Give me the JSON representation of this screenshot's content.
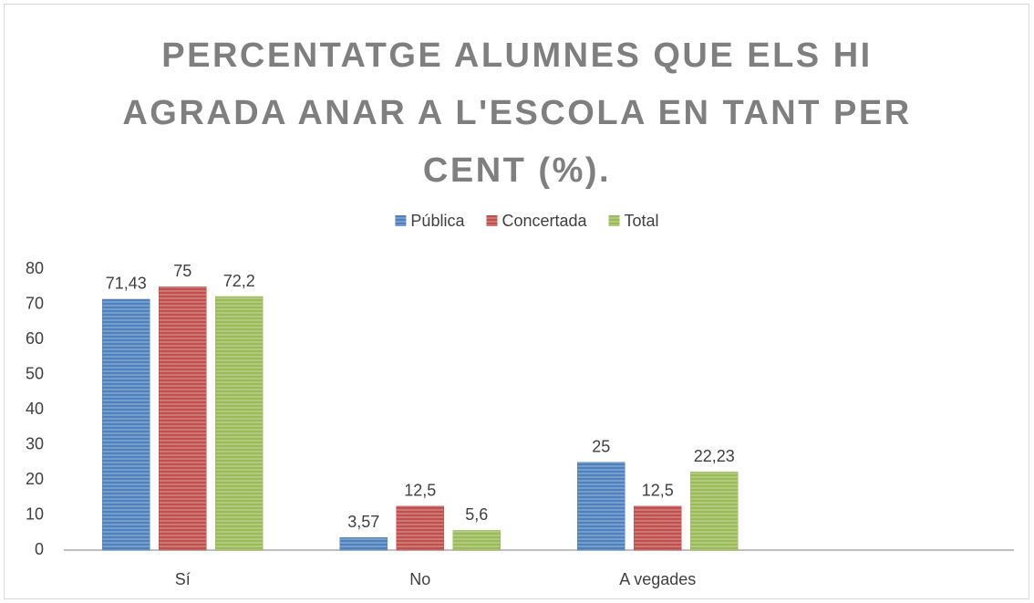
{
  "chart_data": {
    "type": "bar",
    "title": "PERCENTATGE ALUMNES QUE ELS HI AGRADA ANAR A L'ESCOLA EN TANT PER CENT (%).",
    "categories": [
      "Sí",
      "No",
      "A vegades",
      null
    ],
    "series": [
      {
        "name": "Pública",
        "color": "#4f81bd",
        "values": [
          71.43,
          3.57,
          25,
          null
        ],
        "value_labels": [
          "71,43",
          "3,57",
          "25",
          null
        ]
      },
      {
        "name": "Concertada",
        "color": "#c0504d",
        "values": [
          75,
          12.5,
          12.5,
          null
        ],
        "value_labels": [
          "75",
          "12,5",
          "12,5",
          null
        ]
      },
      {
        "name": "Total",
        "color": "#9bbb59",
        "values": [
          72.2,
          5.6,
          22.23,
          null
        ],
        "value_labels": [
          "72,2",
          "5,6",
          "22,23",
          null
        ]
      }
    ],
    "ylim": [
      0,
      80
    ],
    "yticks": [
      0,
      10,
      20,
      30,
      40,
      50,
      60,
      70,
      80
    ],
    "grid": false,
    "legend": "top"
  }
}
